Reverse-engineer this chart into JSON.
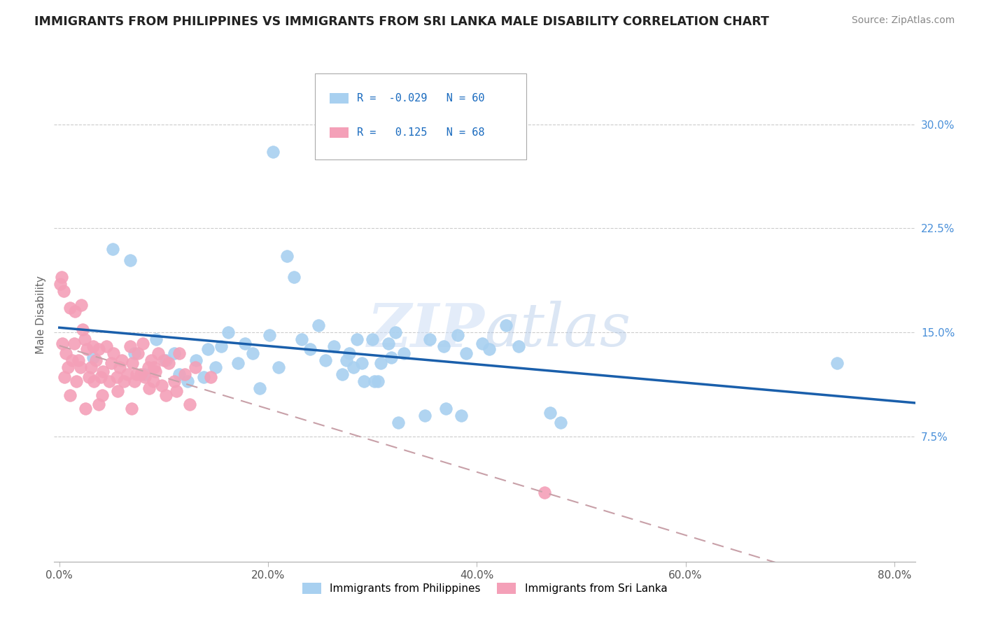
{
  "title": "IMMIGRANTS FROM PHILIPPINES VS IMMIGRANTS FROM SRI LANKA MALE DISABILITY CORRELATION CHART",
  "source": "Source: ZipAtlas.com",
  "xlabel_vals": [
    0.0,
    20.0,
    40.0,
    60.0,
    80.0
  ],
  "ylabel_vals": [
    7.5,
    15.0,
    22.5,
    30.0
  ],
  "xlim": [
    -0.5,
    82
  ],
  "ylim": [
    -1.5,
    34
  ],
  "R_blue": -0.029,
  "N_blue": 60,
  "R_pink": 0.125,
  "N_pink": 68,
  "color_blue": "#A8D0F0",
  "color_pink": "#F4A0B8",
  "line_blue": "#1A5FAB",
  "line_pink": "#D08090",
  "ylabel": "Male Disability",
  "legend_label_blue": "Immigrants from Philippines",
  "legend_label_pink": "Immigrants from Sri Lanka",
  "blue_x": [
    3.2,
    20.5,
    5.1,
    6.8,
    7.2,
    8.1,
    9.3,
    10.2,
    11.0,
    11.5,
    12.3,
    13.1,
    13.8,
    14.2,
    15.0,
    15.5,
    16.2,
    17.1,
    17.8,
    18.5,
    19.2,
    20.1,
    21.0,
    21.8,
    22.5,
    23.2,
    24.0,
    24.8,
    25.5,
    26.3,
    27.1,
    27.8,
    28.5,
    29.2,
    30.0,
    30.8,
    31.5,
    32.2,
    33.0,
    35.5,
    36.8,
    38.2,
    39.0,
    40.5,
    41.2,
    42.8,
    44.0,
    47.0,
    48.0,
    30.5,
    27.5,
    28.2,
    32.5,
    35.0,
    29.0,
    30.2,
    31.8,
    37.0,
    38.5,
    74.5
  ],
  "blue_y": [
    13.2,
    28.0,
    21.0,
    20.2,
    13.5,
    12.0,
    14.5,
    13.0,
    13.5,
    12.0,
    11.5,
    13.0,
    11.8,
    13.8,
    12.5,
    14.0,
    15.0,
    12.8,
    14.2,
    13.5,
    11.0,
    14.8,
    12.5,
    20.5,
    19.0,
    14.5,
    13.8,
    15.5,
    13.0,
    14.0,
    12.0,
    13.5,
    14.5,
    11.5,
    14.5,
    12.8,
    14.2,
    15.0,
    13.5,
    14.5,
    14.0,
    14.8,
    13.5,
    14.2,
    13.8,
    15.5,
    14.0,
    9.2,
    8.5,
    11.5,
    13.0,
    12.5,
    8.5,
    9.0,
    12.8,
    11.5,
    13.2,
    9.5,
    9.0,
    12.8
  ],
  "pink_x": [
    0.1,
    0.2,
    0.3,
    0.4,
    0.5,
    0.6,
    0.8,
    1.0,
    1.2,
    1.4,
    1.6,
    1.8,
    2.0,
    2.2,
    2.4,
    2.6,
    2.8,
    3.0,
    3.2,
    3.5,
    3.8,
    4.0,
    4.2,
    4.5,
    4.8,
    5.0,
    5.2,
    5.5,
    5.8,
    6.0,
    6.2,
    6.5,
    6.8,
    7.0,
    7.2,
    7.5,
    7.8,
    8.0,
    8.2,
    8.5,
    8.8,
    9.0,
    9.2,
    9.5,
    9.8,
    10.0,
    10.5,
    11.0,
    11.5,
    12.0,
    13.0,
    14.5,
    1.5,
    2.1,
    3.3,
    4.1,
    5.6,
    6.9,
    7.4,
    8.6,
    9.1,
    10.2,
    11.2,
    12.5,
    1.0,
    2.5,
    46.5,
    3.8
  ],
  "pink_y": [
    18.5,
    19.0,
    14.2,
    18.0,
    11.8,
    13.5,
    12.5,
    16.8,
    13.0,
    14.2,
    11.5,
    13.0,
    12.5,
    15.2,
    14.5,
    13.8,
    11.8,
    12.5,
    14.0,
    13.0,
    13.8,
    11.8,
    12.2,
    14.0,
    11.5,
    12.8,
    13.5,
    11.8,
    12.5,
    13.0,
    11.5,
    12.0,
    14.0,
    12.8,
    11.5,
    13.5,
    12.0,
    14.2,
    11.8,
    12.5,
    13.0,
    11.5,
    12.2,
    13.5,
    11.2,
    13.0,
    12.8,
    11.5,
    13.5,
    12.0,
    12.5,
    11.8,
    16.5,
    17.0,
    11.5,
    10.5,
    10.8,
    9.5,
    12.0,
    11.0,
    12.5,
    10.5,
    10.8,
    9.8,
    10.5,
    9.5,
    3.5,
    9.8
  ]
}
